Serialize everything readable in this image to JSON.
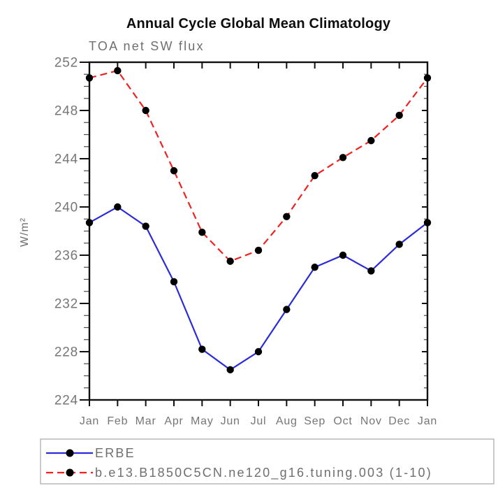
{
  "chart_data": {
    "type": "line",
    "title": "Annual Cycle Global Mean Climatology",
    "subtitle": "TOA net SW flux",
    "xlabel": "",
    "ylabel": "W/m²",
    "categories": [
      "Jan",
      "Feb",
      "Mar",
      "Apr",
      "May",
      "Jun",
      "Jul",
      "Aug",
      "Sep",
      "Oct",
      "Nov",
      "Dec",
      "Jan"
    ],
    "series": [
      {
        "name": "ERBE",
        "color": "#2b2bd9",
        "line_style": "solid",
        "marker": "filled-black-circle",
        "marker_color": "#000000",
        "values": [
          238.7,
          240.0,
          238.4,
          233.8,
          228.2,
          226.5,
          228.0,
          231.5,
          235.0,
          236.0,
          234.7,
          236.9,
          238.7
        ]
      },
      {
        "name": "b.e13.B1850C5CN.ne120_g16.tuning.003 (1-10)",
        "color": "#ee2222",
        "line_style": "dashed",
        "marker": "filled-black-circle",
        "marker_color": "#000000",
        "values": [
          250.7,
          251.3,
          248.0,
          243.0,
          237.9,
          235.5,
          236.4,
          239.2,
          242.6,
          244.1,
          245.5,
          247.6,
          250.7
        ]
      }
    ],
    "ylim": [
      224,
      252
    ],
    "ytick_step": 4,
    "minor_tick_step": 1,
    "grid": false,
    "legend_position": "bottom-left-box",
    "text_colors": {
      "title": "#0d0d0d",
      "axis_text": "#767676",
      "axis_line": "#111111"
    }
  }
}
